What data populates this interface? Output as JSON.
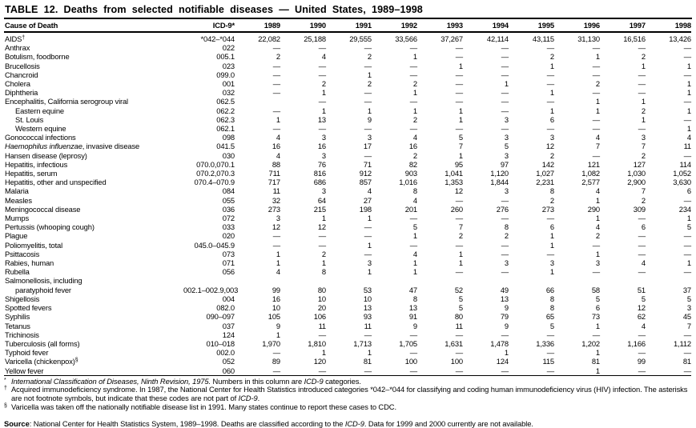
{
  "title": "TABLE 12. Deaths from selected notifiable diseases — United States, 1989–1998",
  "table": {
    "columns": [
      "Cause of Death",
      "ICD-9*",
      "1989",
      "1990",
      "1991",
      "1992",
      "1993",
      "1994",
      "1995",
      "1996",
      "1997",
      "1998"
    ],
    "rows": [
      {
        "label": [
          {
            "t": "AIDS",
            "i": false
          }
        ],
        "sup": "†",
        "indent": false,
        "icd": "*042–*044",
        "values": [
          "22,082",
          "25,188",
          "29,555",
          "33,566",
          "37,267",
          "42,114",
          "43,115",
          "31,130",
          "16,516",
          "13,426"
        ]
      },
      {
        "label": [
          {
            "t": "Anthrax",
            "i": false
          }
        ],
        "sup": "",
        "indent": false,
        "icd": "022",
        "values": [
          "—",
          "—",
          "—",
          "—",
          "—",
          "—",
          "—",
          "—",
          "—",
          "—"
        ]
      },
      {
        "label": [
          {
            "t": "Botulism, foodborne",
            "i": false
          }
        ],
        "sup": "",
        "indent": false,
        "icd": "005.1",
        "values": [
          "2",
          "4",
          "2",
          "1",
          "—",
          "—",
          "2",
          "1",
          "2",
          "—"
        ]
      },
      {
        "label": [
          {
            "t": "Brucellosis",
            "i": false
          }
        ],
        "sup": "",
        "indent": false,
        "icd": "023",
        "values": [
          "—",
          "—",
          "—",
          "—",
          "1",
          "—",
          "1",
          "—",
          "1",
          "1"
        ]
      },
      {
        "label": [
          {
            "t": "Chancroid",
            "i": false
          }
        ],
        "sup": "",
        "indent": false,
        "icd": "099.0",
        "values": [
          "—",
          "—",
          "1",
          "—",
          "—",
          "—",
          "—",
          "—",
          "—",
          "—"
        ]
      },
      {
        "label": [
          {
            "t": "Cholera",
            "i": false
          }
        ],
        "sup": "",
        "indent": false,
        "icd": "001",
        "values": [
          "—",
          "2",
          "2",
          "2",
          "—",
          "1",
          "—",
          "2",
          "—",
          "1"
        ]
      },
      {
        "label": [
          {
            "t": "Diphtheria",
            "i": false
          }
        ],
        "sup": "",
        "indent": false,
        "icd": "032",
        "values": [
          "—",
          "1",
          "—",
          "1",
          "—",
          "—",
          "1",
          "—",
          "—",
          "1"
        ]
      },
      {
        "label": [
          {
            "t": "Encephalitis, California serogroup viral",
            "i": false
          }
        ],
        "sup": "",
        "indent": false,
        "icd": "062.5",
        "values": [
          "",
          "—",
          "—",
          "—",
          "—",
          "—",
          "—",
          "1",
          "1",
          "—"
        ]
      },
      {
        "label": [
          {
            "t": "Eastern equine",
            "i": false
          }
        ],
        "sup": "",
        "indent": true,
        "icd": "062.2",
        "values": [
          "—",
          "1",
          "1",
          "1",
          "1",
          "—",
          "1",
          "1",
          "2",
          "1"
        ]
      },
      {
        "label": [
          {
            "t": "St. Louis",
            "i": false
          }
        ],
        "sup": "",
        "indent": true,
        "icd": "062.3",
        "values": [
          "1",
          "13",
          "9",
          "2",
          "1",
          "3",
          "6",
          "—",
          "1",
          "—"
        ]
      },
      {
        "label": [
          {
            "t": "Western equine",
            "i": false
          }
        ],
        "sup": "",
        "indent": true,
        "icd": "062.1",
        "values": [
          "—",
          "—",
          "—",
          "—",
          "—",
          "—",
          "—",
          "—",
          "—",
          "1"
        ]
      },
      {
        "label": [
          {
            "t": "Gonococcal infections",
            "i": false
          }
        ],
        "sup": "",
        "indent": false,
        "icd": "098",
        "values": [
          "4",
          "3",
          "3",
          "4",
          "5",
          "3",
          "3",
          "4",
          "3",
          "4"
        ]
      },
      {
        "label": [
          {
            "t": "Haemophilus influenzae",
            "i": true
          },
          {
            "t": ", invasive disease",
            "i": false
          }
        ],
        "sup": "",
        "indent": false,
        "icd": "041.5",
        "values": [
          "16",
          "16",
          "17",
          "16",
          "7",
          "5",
          "12",
          "7",
          "7",
          "11"
        ]
      },
      {
        "label": [
          {
            "t": "Hansen disease (leprosy)",
            "i": false
          }
        ],
        "sup": "",
        "indent": false,
        "icd": "030",
        "values": [
          "4",
          "3",
          "—",
          "2",
          "1",
          "3",
          "2",
          "—",
          "2",
          "—"
        ]
      },
      {
        "label": [
          {
            "t": "Hepatitis, infectious",
            "i": false
          }
        ],
        "sup": "",
        "indent": false,
        "icd": "070.0,070.1",
        "values": [
          "88",
          "76",
          "71",
          "82",
          "95",
          "97",
          "142",
          "121",
          "127",
          "114"
        ]
      },
      {
        "label": [
          {
            "t": "Hepatitis, serum",
            "i": false
          }
        ],
        "sup": "",
        "indent": false,
        "icd": "070.2,070.3",
        "values": [
          "711",
          "816",
          "912",
          "903",
          "1,041",
          "1,120",
          "1,027",
          "1,082",
          "1,030",
          "1,052"
        ]
      },
      {
        "label": [
          {
            "t": "Hepatitis, other and unspecified",
            "i": false
          }
        ],
        "sup": "",
        "indent": false,
        "icd": "070.4–070.9",
        "values": [
          "717",
          "686",
          "857",
          "1,016",
          "1,353",
          "1,844",
          "2,231",
          "2,577",
          "2,900",
          "3,630"
        ]
      },
      {
        "label": [
          {
            "t": "Malaria",
            "i": false
          }
        ],
        "sup": "",
        "indent": false,
        "icd": "084",
        "values": [
          "11",
          "3",
          "4",
          "8",
          "12",
          "3",
          "8",
          "4",
          "7",
          "6"
        ]
      },
      {
        "label": [
          {
            "t": "Measles",
            "i": false
          }
        ],
        "sup": "",
        "indent": false,
        "icd": "055",
        "values": [
          "32",
          "64",
          "27",
          "4",
          "—",
          "—",
          "2",
          "1",
          "2",
          "—"
        ]
      },
      {
        "label": [
          {
            "t": "Meningococcal disease",
            "i": false
          }
        ],
        "sup": "",
        "indent": false,
        "icd": "036",
        "values": [
          "273",
          "215",
          "198",
          "201",
          "260",
          "276",
          "273",
          "290",
          "309",
          "234"
        ]
      },
      {
        "label": [
          {
            "t": "Mumps",
            "i": false
          }
        ],
        "sup": "",
        "indent": false,
        "icd": "072",
        "values": [
          "3",
          "1",
          "1",
          "—",
          "—",
          "—",
          "—",
          "1",
          "—",
          "1"
        ]
      },
      {
        "label": [
          {
            "t": "Pertussis (whooping cough)",
            "i": false
          }
        ],
        "sup": "",
        "indent": false,
        "icd": "033",
        "values": [
          "12",
          "12",
          "—",
          "5",
          "7",
          "8",
          "6",
          "4",
          "6",
          "5"
        ]
      },
      {
        "label": [
          {
            "t": "Plague",
            "i": false
          }
        ],
        "sup": "",
        "indent": false,
        "icd": "020",
        "values": [
          "—",
          "—",
          "—",
          "1",
          "2",
          "2",
          "1",
          "2",
          "—",
          "—"
        ]
      },
      {
        "label": [
          {
            "t": "Poliomyelitis, total",
            "i": false
          }
        ],
        "sup": "",
        "indent": false,
        "icd": "045.0–045.9",
        "values": [
          "—",
          "—",
          "1",
          "—",
          "—",
          "—",
          "1",
          "—",
          "—",
          "—"
        ]
      },
      {
        "label": [
          {
            "t": "Psittacosis",
            "i": false
          }
        ],
        "sup": "",
        "indent": false,
        "icd": "073",
        "values": [
          "1",
          "2",
          "—",
          "4",
          "1",
          "—",
          "—",
          "1",
          "—",
          "—"
        ]
      },
      {
        "label": [
          {
            "t": "Rabies, human",
            "i": false
          }
        ],
        "sup": "",
        "indent": false,
        "icd": "071",
        "values": [
          "1",
          "1",
          "3",
          "1",
          "1",
          "3",
          "3",
          "3",
          "4",
          "1"
        ]
      },
      {
        "label": [
          {
            "t": "Rubella",
            "i": false
          }
        ],
        "sup": "",
        "indent": false,
        "icd": "056",
        "values": [
          "4",
          "8",
          "1",
          "1",
          "—",
          "—",
          "1",
          "—",
          "—",
          "—"
        ]
      },
      {
        "label": [
          {
            "t": "Salmonellosis, including",
            "i": false
          }
        ],
        "sup": "",
        "indent": false,
        "icd": "",
        "values": [
          "",
          "",
          "",
          "",
          "",
          "",
          "",
          "",
          "",
          ""
        ]
      },
      {
        "label": [
          {
            "t": "paratyphoid fever",
            "i": false
          }
        ],
        "sup": "",
        "indent": true,
        "icd": "002.1–002.9,003",
        "values": [
          "99",
          "80",
          "53",
          "47",
          "52",
          "49",
          "66",
          "58",
          "51",
          "37"
        ]
      },
      {
        "label": [
          {
            "t": "Shigellosis",
            "i": false
          }
        ],
        "sup": "",
        "indent": false,
        "icd": "004",
        "values": [
          "16",
          "10",
          "10",
          "8",
          "5",
          "13",
          "8",
          "5",
          "5",
          "5"
        ]
      },
      {
        "label": [
          {
            "t": "Spotted fevers",
            "i": false
          }
        ],
        "sup": "",
        "indent": false,
        "icd": "082.0",
        "values": [
          "10",
          "20",
          "13",
          "13",
          "5",
          "9",
          "8",
          "6",
          "12",
          "3"
        ]
      },
      {
        "label": [
          {
            "t": "Syphilis",
            "i": false
          }
        ],
        "sup": "",
        "indent": false,
        "icd": "090–097",
        "values": [
          "105",
          "106",
          "93",
          "91",
          "80",
          "79",
          "65",
          "73",
          "62",
          "45"
        ]
      },
      {
        "label": [
          {
            "t": "Tetanus",
            "i": false
          }
        ],
        "sup": "",
        "indent": false,
        "icd": "037",
        "values": [
          "9",
          "11",
          "11",
          "9",
          "11",
          "9",
          "5",
          "1",
          "4",
          "7"
        ]
      },
      {
        "label": [
          {
            "t": "Trichinosis",
            "i": false
          }
        ],
        "sup": "",
        "indent": false,
        "icd": "124",
        "values": [
          "1",
          "—",
          "—",
          "—",
          "—",
          "—",
          "—",
          "—",
          "—",
          "—"
        ]
      },
      {
        "label": [
          {
            "t": "Tuberculosis (all forms)",
            "i": false
          }
        ],
        "sup": "",
        "indent": false,
        "icd": "010–018",
        "values": [
          "1,970",
          "1,810",
          "1,713",
          "1,705",
          "1,631",
          "1,478",
          "1,336",
          "1,202",
          "1,166",
          "1,112"
        ]
      },
      {
        "label": [
          {
            "t": "Typhoid fever",
            "i": false
          }
        ],
        "sup": "",
        "indent": false,
        "icd": "002.0",
        "values": [
          "—",
          "1",
          "1",
          "—",
          "—",
          "1",
          "—",
          "1",
          "—",
          "—"
        ]
      },
      {
        "label": [
          {
            "t": "Varicella (chickenpox)",
            "i": false
          }
        ],
        "sup": "§",
        "indent": false,
        "icd": "052",
        "values": [
          "89",
          "120",
          "81",
          "100",
          "100",
          "124",
          "115",
          "81",
          "99",
          "81"
        ]
      },
      {
        "label": [
          {
            "t": "Yellow fever",
            "i": false
          }
        ],
        "sup": "",
        "indent": false,
        "icd": "060",
        "values": [
          "—",
          "—",
          "—",
          "—",
          "—",
          "—",
          "—",
          "1",
          "—",
          "—"
        ]
      }
    ]
  },
  "footnotes": [
    {
      "sym": "*",
      "segments": [
        {
          "t": "International Classification of Diseases, Ninth Revision, 1975.",
          "i": true
        },
        {
          "t": " Numbers in this column are ",
          "i": false
        },
        {
          "t": "ICD-9",
          "i": true
        },
        {
          "t": " categories.",
          "i": false
        }
      ]
    },
    {
      "sym": "†",
      "segments": [
        {
          "t": "Acquired immunodeficiency syndrome. In 1987, the National Center for Health Statistics introduced categories *042–*044 for classifying and coding human immunodeficiency virus (HIV) infection. The asterisks are not footnote symbols, but indicate that these codes are not part of ",
          "i": false
        },
        {
          "t": "ICD-9",
          "i": true
        },
        {
          "t": ".",
          "i": false
        }
      ]
    },
    {
      "sym": "§",
      "segments": [
        {
          "t": "Varicella was taken off the nationally notifiable disease list in 1991. Many states continue to report these cases to CDC.",
          "i": false
        }
      ]
    }
  ],
  "source": {
    "label": "Source",
    "segments": [
      {
        "t": ": National Center for Health Statistics System, 1989–1998. Deaths are classified according to the ",
        "i": false
      },
      {
        "t": "ICD-9",
        "i": true
      },
      {
        "t": ". Data for 1999 and 2000 currently are not available.",
        "i": false
      }
    ]
  }
}
